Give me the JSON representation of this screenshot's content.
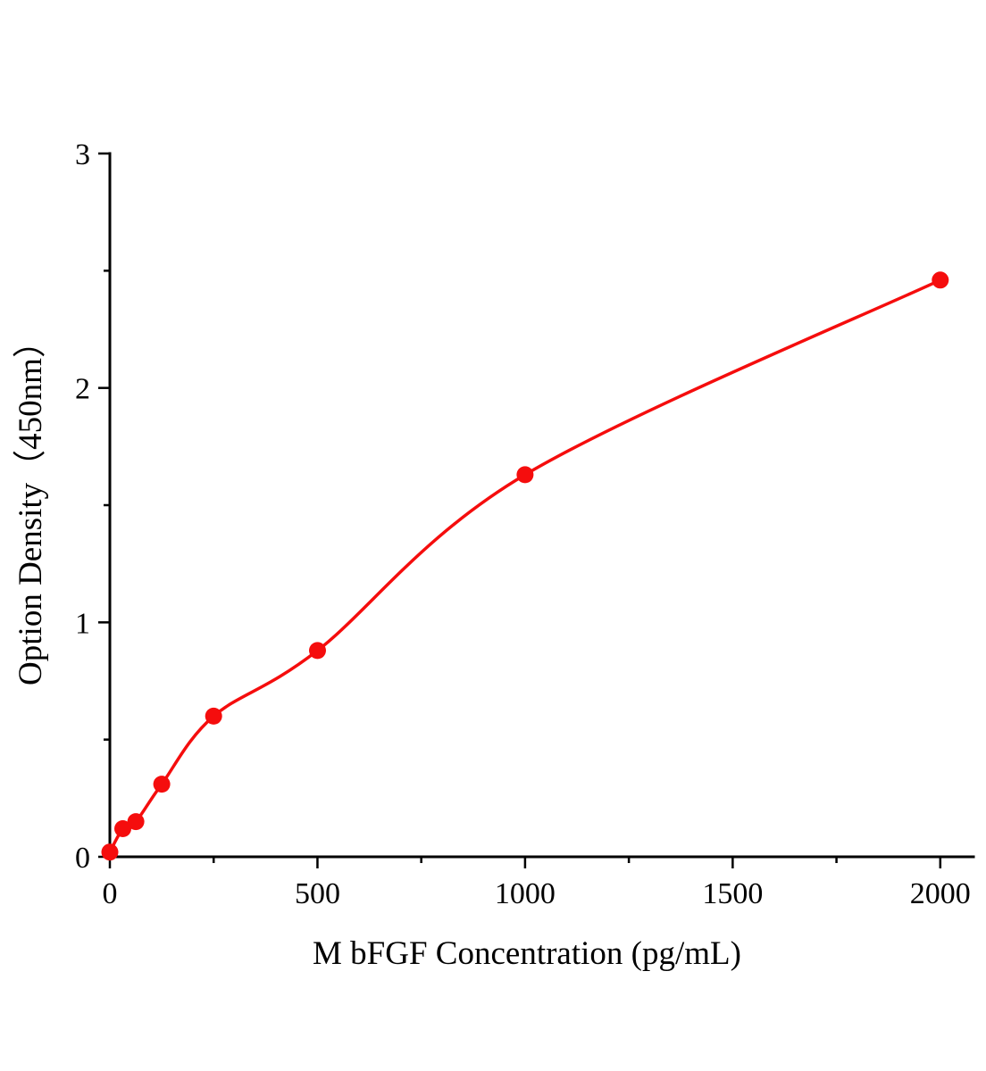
{
  "chart_data": {
    "type": "scatter",
    "title": "",
    "xlabel": "M bFGF Concentration (pg/mL)",
    "ylabel": "Option Density（450nm）",
    "x": [
      0,
      31.25,
      62.5,
      125,
      250,
      500,
      1000,
      2000
    ],
    "y": [
      0.02,
      0.12,
      0.15,
      0.31,
      0.6,
      0.88,
      1.63,
      2.46
    ],
    "xlim": [
      0,
      2080
    ],
    "ylim": [
      0,
      3
    ],
    "x_major_ticks": [
      0,
      500,
      1000,
      1500,
      2000
    ],
    "x_minor_step": 250,
    "y_major_ticks": [
      0,
      1,
      2,
      3
    ],
    "y_minor_step": 0.5,
    "marker_color": "#f50d0d",
    "line_color": "#f50d0d",
    "axis_color": "#000000",
    "background_color": "#ffffff",
    "grid": false,
    "legend": null,
    "curve_style": "smooth-fit"
  }
}
